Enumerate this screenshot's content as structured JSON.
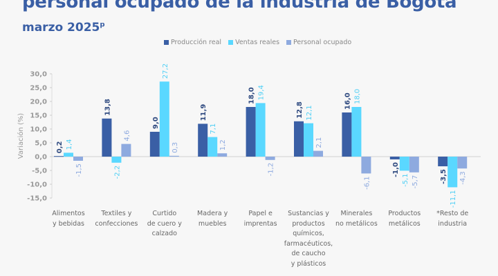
{
  "header": {
    "title": "personal ocupado de la industria de Bogotá",
    "subtitle": "marzo 2025",
    "subtitle_mark": "p"
  },
  "chart_data": {
    "type": "bar",
    "ylabel": "Variación (%)",
    "ylim": [
      -15,
      30
    ],
    "yticks": [
      "30,0",
      "25,0",
      "20,0",
      "15,0",
      "10,0",
      "5,0",
      "0,0",
      "-5,0",
      "-10,0",
      "-15,0"
    ],
    "ytick_values": [
      30,
      25,
      20,
      15,
      10,
      5,
      0,
      -5,
      -10,
      -15
    ],
    "grid": false,
    "legend": "top",
    "categories": [
      [
        "Alimentos",
        "y bebidas"
      ],
      [
        "Textiles y",
        "confecciones"
      ],
      [
        "Curtido",
        "de cuero y",
        "calzado"
      ],
      [
        "Madera y",
        "muebles"
      ],
      [
        "Papel e",
        "imprentas"
      ],
      [
        "Sustancias y",
        "productos",
        "químicos,",
        "farmacéuticos,",
        "de caucho",
        "y plásticos"
      ],
      [
        "Minerales",
        "no metálicos"
      ],
      [
        "Productos",
        "metálicos"
      ],
      [
        "*Resto de",
        "industria"
      ]
    ],
    "series": [
      {
        "name": "Producción real",
        "color": "#3a5fa5",
        "label_color": "#2f4a80",
        "values": [
          0.2,
          13.8,
          9.0,
          11.9,
          18.0,
          12.8,
          16.0,
          -1.0,
          -3.5
        ],
        "labels": [
          "0,2",
          "13,8",
          "9,0",
          "11,9",
          "18,0",
          "12,8",
          "16,0",
          "-1,0",
          "-3,5"
        ]
      },
      {
        "name": "Ventas reales",
        "color": "#5ad8ff",
        "label_color": "#4fcff5",
        "values": [
          1.4,
          -2.2,
          27.2,
          7.1,
          19.4,
          12.1,
          18.0,
          -5.1,
          -11.1
        ],
        "labels": [
          "1,4",
          "-2,2",
          "27,2",
          "7,1",
          "19,4",
          "12,1",
          "18,0",
          "-5,1",
          "-11,1"
        ]
      },
      {
        "name": "Personal ocupado",
        "color": "#8eaadf",
        "label_color": "#8eaadf",
        "values": [
          -1.5,
          4.6,
          0.3,
          1.2,
          -1.2,
          2.1,
          -6.1,
          -5.7,
          -4.3
        ],
        "labels": [
          "-1,5",
          "4,6",
          "0,3",
          "1,2",
          "-1,2",
          "2,1",
          "-6,1",
          "-5,7",
          "-4,3"
        ]
      }
    ]
  }
}
